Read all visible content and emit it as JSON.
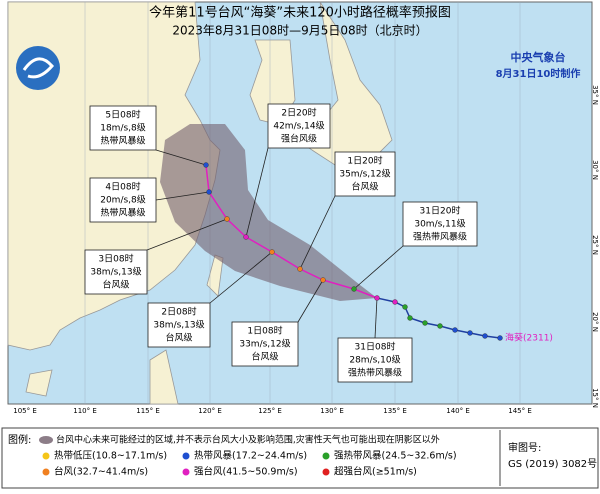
{
  "header": {
    "title": "今年第11号台风“海葵”未来120小时路径概率预报图",
    "subtitle": "2023年8月31日08时—9月5日08时（北京时）"
  },
  "agency": {
    "name": "中央气象台",
    "issued": "8月31日10时制作"
  },
  "annotations": [
    {
      "lines": [
        "5日08时",
        "18m/s,8级",
        "热带风暴级"
      ]
    },
    {
      "lines": [
        "4日08时",
        "20m/s,8级",
        "热带风暴级"
      ]
    },
    {
      "lines": [
        "3日08时",
        "38m/s,13级",
        "台风级"
      ]
    },
    {
      "lines": [
        "2日20时",
        "42m/s,14级",
        "强台风级"
      ]
    },
    {
      "lines": [
        "1日20时",
        "35m/s,12级",
        "台风级"
      ]
    },
    {
      "lines": [
        "31日20时",
        "30m/s,11级",
        "强热带风暴级"
      ]
    },
    {
      "lines": [
        "2日08时",
        "38m/s,13级",
        "台风级"
      ]
    },
    {
      "lines": [
        "1日08时",
        "33m/s,12级",
        "台风级"
      ]
    },
    {
      "lines": [
        "31日08时",
        "28m/s,10级",
        "强热带风暴级"
      ]
    }
  ],
  "storm_label": "海葵(2311)",
  "lon_labels": [
    "105° E",
    "110° E",
    "115° E",
    "120° E",
    "125° E",
    "130° E",
    "135° E",
    "140° E",
    "145° E"
  ],
  "lat_labels": [
    "35° N",
    "30° N",
    "25° N",
    "20° N",
    "15° N"
  ],
  "legend": {
    "title": "图例:",
    "area_note": "台风中心未来可能经过的区域,并不表示台风大小及影响范围,灾害性天气也可能出现在阴影区以外",
    "items": [
      {
        "label": "热带低压(10.8~17.1m/s)"
      },
      {
        "label": "热带风暴(17.2~24.4m/s)"
      },
      {
        "label": "强热带风暴(24.5~32.6m/s)"
      },
      {
        "label": "台风(32.7~41.4m/s)"
      },
      {
        "label": "强台风(41.5~50.9m/s)"
      },
      {
        "label": "超强台风(≥51m/s)"
      }
    ]
  },
  "approval": {
    "label": "审图号:",
    "number": "GS (2019) 3082号"
  }
}
